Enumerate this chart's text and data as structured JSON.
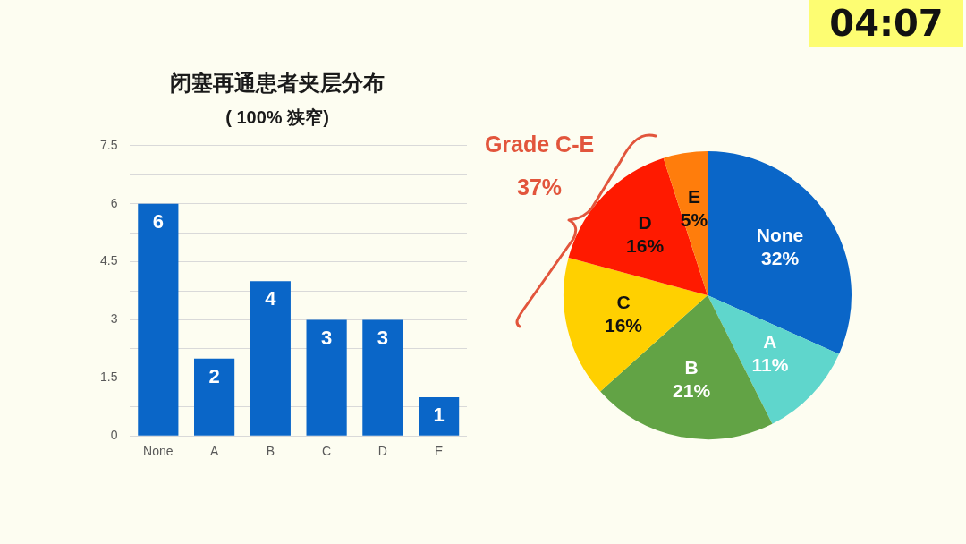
{
  "chart_data": [
    {
      "type": "bar",
      "title": "闭塞再通患者夹层分布",
      "subtitle": "( 100% 狭窄)",
      "categories": [
        "None",
        "A",
        "B",
        "C",
        "D",
        "E"
      ],
      "values": [
        6,
        2,
        4,
        3,
        3,
        1
      ],
      "color": "#0a66c8",
      "ylim": [
        0,
        7.5
      ],
      "yticks": [
        0,
        {
          "value": 0.75,
          "label": null
        },
        1.5,
        {
          "value": 2.25,
          "label": null
        },
        3,
        {
          "value": 3.75,
          "label": null
        },
        4.5,
        {
          "value": 5.25,
          "label": null
        },
        6,
        {
          "value": 6.75,
          "label": null
        },
        7.5
      ],
      "grid": "y",
      "data_labels": true
    },
    {
      "type": "pie",
      "categories": [
        "None",
        "A",
        "B",
        "C",
        "D",
        "E"
      ],
      "values": [
        32,
        11,
        21,
        16,
        16,
        5
      ],
      "colors": [
        "#0a66c8",
        "#5fd6cc",
        "#62a345",
        "#ffd000",
        "#ff1a00",
        "#ff7d0c"
      ],
      "value_labels": [
        "32%",
        "11%",
        "21%",
        "16%",
        "16%",
        "5%"
      ],
      "annotations": [
        "Grade C-E\n37%"
      ]
    },
    {
      "type": "other",
      "annotations": [
        "04:07"
      ]
    }
  ]
}
